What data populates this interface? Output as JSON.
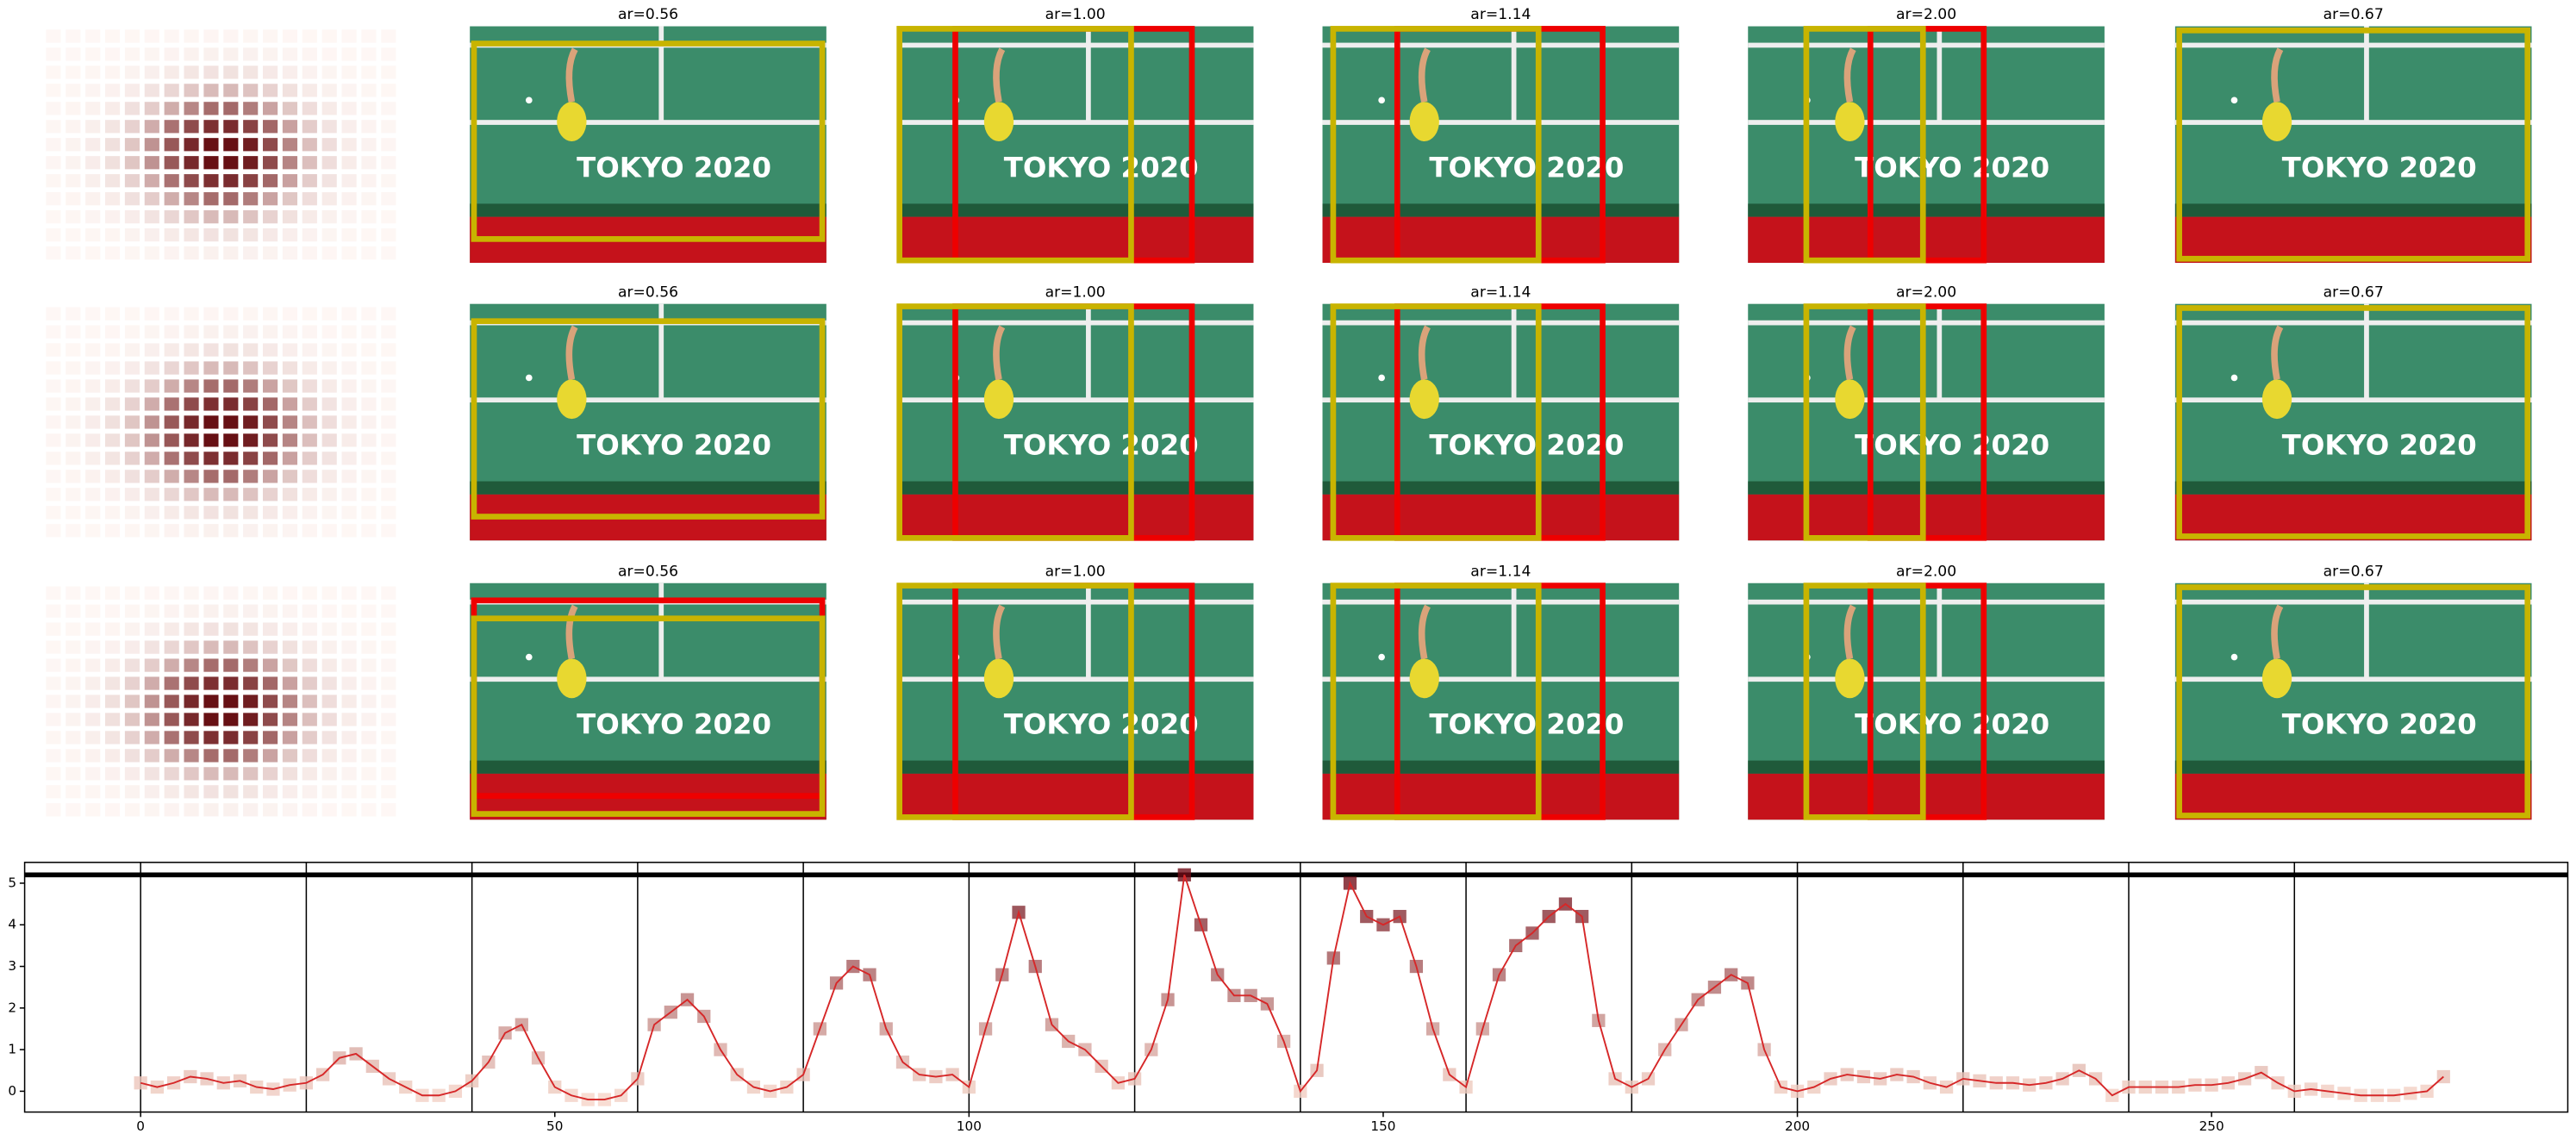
{
  "panel_grid": {
    "titles": [
      [
        "ar=0.56",
        "ar=1.00",
        "ar=1.14",
        "ar=2.00",
        "ar=0.67"
      ],
      [
        "ar=0.56",
        "ar=1.00",
        "ar=1.14",
        "ar=2.00",
        "ar=0.67"
      ],
      [
        "ar=0.56",
        "ar=1.00",
        "ar=1.14",
        "ar=2.00",
        "ar=0.67"
      ]
    ],
    "photo_text": "TOKYO 2020"
  },
  "chart_data": {
    "type": "line",
    "color": "#d62728",
    "marker_colors": [
      "#fde0d2",
      "#67000d"
    ],
    "x": [
      0,
      2,
      4,
      6,
      8,
      10,
      12,
      14,
      16,
      18,
      20,
      22,
      24,
      26,
      28,
      30,
      32,
      34,
      36,
      38,
      40,
      42,
      44,
      46,
      48,
      50,
      52,
      54,
      56,
      58,
      60,
      62,
      64,
      66,
      68,
      70,
      72,
      74,
      76,
      78,
      80,
      82,
      84,
      86,
      88,
      90,
      92,
      94,
      96,
      98,
      100,
      102,
      104,
      106,
      108,
      110,
      112,
      114,
      116,
      118,
      120,
      122,
      124,
      126,
      128,
      130,
      132,
      134,
      136,
      138,
      140,
      142,
      144,
      146,
      148,
      150,
      152,
      154,
      156,
      158,
      160,
      162,
      164,
      166,
      168,
      170,
      172,
      174,
      176,
      178,
      180,
      182,
      184,
      186,
      188,
      190,
      192,
      194,
      196,
      198,
      200,
      202,
      204,
      206,
      208,
      210,
      212,
      214,
      216,
      218,
      220,
      222,
      224,
      226,
      228,
      230,
      232,
      234,
      236,
      238,
      240,
      242,
      244,
      246,
      248,
      250,
      252,
      254,
      256,
      258,
      260,
      262,
      264,
      266,
      268,
      270,
      272,
      274,
      276,
      278
    ],
    "values": [
      0.2,
      0.1,
      0.2,
      0.35,
      0.3,
      0.2,
      0.25,
      0.1,
      0.05,
      0.15,
      0.2,
      0.4,
      0.8,
      0.9,
      0.6,
      0.3,
      0.1,
      -0.1,
      -0.1,
      0.0,
      0.25,
      0.7,
      1.4,
      1.6,
      0.8,
      0.1,
      -0.1,
      -0.2,
      -0.2,
      -0.1,
      0.3,
      1.6,
      1.9,
      2.2,
      1.8,
      1.0,
      0.4,
      0.1,
      0.0,
      0.1,
      0.4,
      1.5,
      2.6,
      3.0,
      2.8,
      1.5,
      0.7,
      0.4,
      0.35,
      0.4,
      0.1,
      1.5,
      2.8,
      4.3,
      3.0,
      1.6,
      1.2,
      1.0,
      0.6,
      0.2,
      0.3,
      1.0,
      2.2,
      5.2,
      4.0,
      2.8,
      2.3,
      2.3,
      2.1,
      1.2,
      0.0,
      0.5,
      3.2,
      5.0,
      4.2,
      4.0,
      4.2,
      3.0,
      1.5,
      0.4,
      0.1,
      1.5,
      2.8,
      3.5,
      3.8,
      4.2,
      4.5,
      4.2,
      1.7,
      0.3,
      0.1,
      0.3,
      1.0,
      1.6,
      2.2,
      2.5,
      2.8,
      2.6,
      1.0,
      0.1,
      0.0,
      0.1,
      0.3,
      0.4,
      0.35,
      0.3,
      0.4,
      0.35,
      0.2,
      0.1,
      0.3,
      0.25,
      0.2,
      0.2,
      0.15,
      0.2,
      0.3,
      0.5,
      0.3,
      -0.1,
      0.1,
      0.1,
      0.1,
      0.1,
      0.15,
      0.15,
      0.2,
      0.3,
      0.45,
      0.2,
      0.0,
      0.05,
      0.0,
      -0.05,
      -0.1,
      -0.1,
      -0.1,
      -0.05,
      0.0,
      0.35
    ],
    "xlim": [
      -14,
      293
    ],
    "ylim": [
      -0.5,
      5.5
    ],
    "xticks": [
      0,
      50,
      100,
      150,
      200,
      250
    ],
    "yticks": [
      0,
      1,
      2,
      3,
      4,
      5
    ],
    "vlines": [
      0,
      20,
      40,
      60,
      80,
      100,
      120,
      140,
      160,
      180,
      200,
      220,
      240,
      260
    ],
    "hline": 5.2
  }
}
